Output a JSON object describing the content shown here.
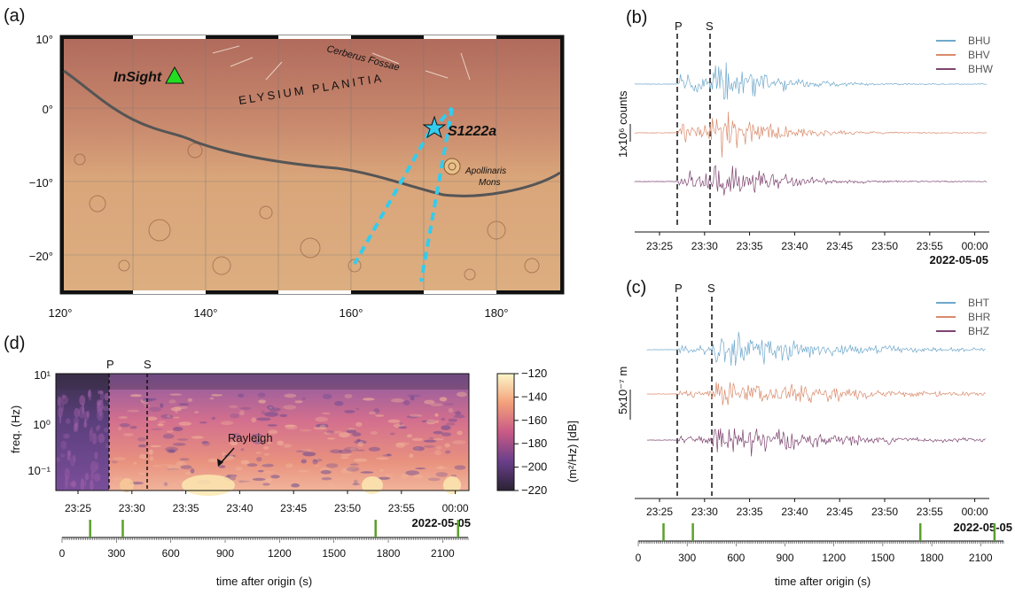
{
  "panels": {
    "a": "(a)",
    "b": "(b)",
    "c": "(c)",
    "d": "(d)"
  },
  "map": {
    "lat_ticks": [
      "10°",
      "0°",
      "−10°",
      "−20°"
    ],
    "lon_ticks": [
      "120°",
      "140°",
      "160°",
      "180°"
    ],
    "labels": {
      "insight": "InSight",
      "event": "S1222a",
      "cerberus": "Cerberus Fossae",
      "elysium": "ELYSIUM PLANITIA",
      "apollinaris_1": "Apollinaris",
      "apollinaris_2": "Mons"
    },
    "colors": {
      "marker_insight": "#22dd22",
      "marker_event": "#33ccee",
      "band": "#33ccee"
    }
  },
  "phase_labels": {
    "p": "P",
    "s": "S"
  },
  "time_ticks": [
    "23:25",
    "23:30",
    "23:35",
    "23:40",
    "23:45",
    "23:50",
    "23:55",
    "00:00"
  ],
  "date_label": "2022-05-05",
  "panel_b": {
    "legend": [
      "BHU",
      "BHV",
      "BHW"
    ],
    "scale_label": "1x10⁶ counts",
    "colors": [
      "#6fa8cc",
      "#d98a6a",
      "#7d4470"
    ]
  },
  "panel_c": {
    "legend": [
      "BHT",
      "BHR",
      "BHZ"
    ],
    "scale_label": "5x10⁻⁷ m",
    "colors": [
      "#6fa8cc",
      "#d98a6a",
      "#7d4470"
    ]
  },
  "panel_d": {
    "ylabel": "freq. (Hz)",
    "yticks": [
      "10¹",
      "10⁰",
      "10⁻¹"
    ],
    "annotation": "Rayleigh",
    "colorbar_label": "(m²/Hz) [dB]",
    "colorbar_ticks": [
      "−120",
      "−140",
      "−160",
      "−180",
      "−200",
      "−220"
    ]
  },
  "seconds_axis": {
    "ticks": [
      "0",
      "300",
      "600",
      "900",
      "1200",
      "1500",
      "1800",
      "2100"
    ],
    "xlabel": "time after origin (s)"
  }
}
